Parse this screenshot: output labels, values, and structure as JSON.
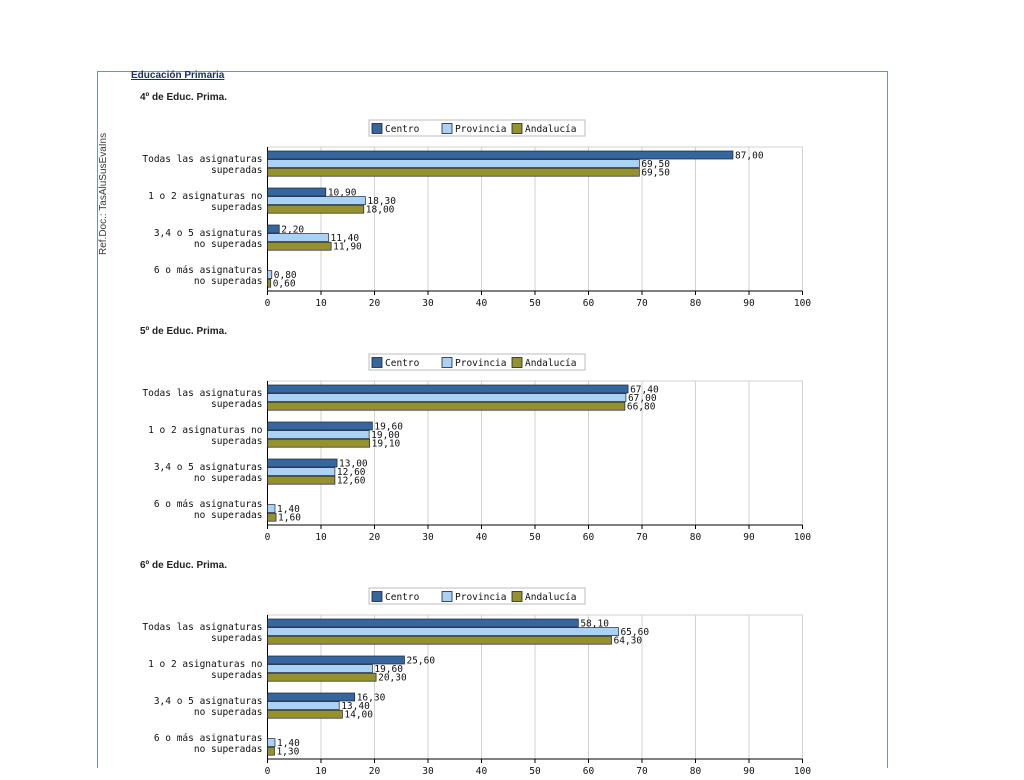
{
  "page": {
    "ref_doc": "Ref.Doc.: TasAluSusEvaIns",
    "section_title": "Educación Primaria"
  },
  "colors": {
    "Centro": "#35669e",
    "Provincia": "#a9d2f5",
    "Andalucía": "#96912f",
    "grid": "#d2d2d2",
    "axis": "#000000"
  },
  "chart_data": [
    {
      "type": "bar",
      "orientation": "horizontal",
      "title": "4º de Educ. Prima.",
      "categories": [
        [
          "Todas las asignaturas",
          "superadas"
        ],
        [
          "1 o 2 asignaturas no",
          "superadas"
        ],
        [
          "3,4 o 5 asignaturas",
          "no superadas"
        ],
        [
          "6 o más asignaturas",
          "no superadas"
        ]
      ],
      "series": [
        {
          "name": "Centro",
          "values": [
            87.0,
            10.9,
            2.2,
            null
          ],
          "labels": [
            "87,00",
            "10,90",
            "2,20",
            ""
          ]
        },
        {
          "name": "Provincia",
          "values": [
            69.5,
            18.3,
            11.4,
            0.8
          ],
          "labels": [
            "69,50",
            "18,30",
            "11,40",
            "0,80"
          ]
        },
        {
          "name": "Andalucía",
          "values": [
            69.5,
            18.0,
            11.9,
            0.6
          ],
          "labels": [
            "69,50",
            "18,00",
            "11,90",
            "0,60"
          ]
        }
      ],
      "xlim": [
        0,
        100
      ],
      "xticks": [
        "0",
        "10",
        "20",
        "30",
        "40",
        "50",
        "60",
        "70",
        "80",
        "90",
        "100"
      ],
      "grid": true,
      "legend": "top"
    },
    {
      "type": "bar",
      "orientation": "horizontal",
      "title": "5º de Educ. Prima.",
      "categories": [
        [
          "Todas las asignaturas",
          "superadas"
        ],
        [
          "1 o 2 asignaturas no",
          "superadas"
        ],
        [
          "3,4 o 5 asignaturas",
          "no superadas"
        ],
        [
          "6 o más asignaturas",
          "no superadas"
        ]
      ],
      "series": [
        {
          "name": "Centro",
          "values": [
            67.4,
            19.6,
            13.0,
            null
          ],
          "labels": [
            "67,40",
            "19,60",
            "13,00",
            ""
          ]
        },
        {
          "name": "Provincia",
          "values": [
            67.0,
            19.0,
            12.6,
            1.4
          ],
          "labels": [
            "67,00",
            "19,00",
            "12,60",
            "1,40"
          ]
        },
        {
          "name": "Andalucía",
          "values": [
            66.8,
            19.1,
            12.6,
            1.6
          ],
          "labels": [
            "66,80",
            "19,10",
            "12,60",
            "1,60"
          ]
        }
      ],
      "xlim": [
        0,
        100
      ],
      "xticks": [
        "0",
        "10",
        "20",
        "30",
        "40",
        "50",
        "60",
        "70",
        "80",
        "90",
        "100"
      ],
      "grid": true,
      "legend": "top"
    },
    {
      "type": "bar",
      "orientation": "horizontal",
      "title": "6º de Educ. Prima.",
      "categories": [
        [
          "Todas las asignaturas",
          "superadas"
        ],
        [
          "1 o 2 asignaturas no",
          "superadas"
        ],
        [
          "3,4 o 5 asignaturas",
          "no superadas"
        ],
        [
          "6 o más asignaturas",
          "no superadas"
        ]
      ],
      "series": [
        {
          "name": "Centro",
          "values": [
            58.1,
            25.6,
            16.3,
            null
          ],
          "labels": [
            "58,10",
            "25,60",
            "16,30",
            ""
          ]
        },
        {
          "name": "Provincia",
          "values": [
            65.6,
            19.6,
            13.4,
            1.4
          ],
          "labels": [
            "65,60",
            "19,60",
            "13,40",
            "1,40"
          ]
        },
        {
          "name": "Andalucía",
          "values": [
            64.3,
            20.3,
            14.0,
            1.3
          ],
          "labels": [
            "64,30",
            "20,30",
            "14,00",
            "1,30"
          ]
        }
      ],
      "xlim": [
        0,
        100
      ],
      "xticks": [
        "0",
        "10",
        "20",
        "30",
        "40",
        "50",
        "60",
        "70",
        "80",
        "90",
        "100"
      ],
      "grid": true,
      "legend": "top"
    }
  ]
}
